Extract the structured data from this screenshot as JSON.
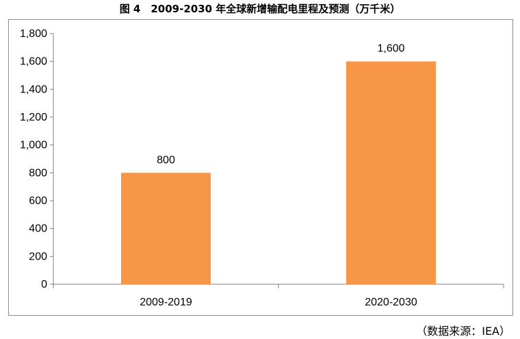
{
  "chart_title": "图 4　2009-2030 年全球新增输配电里程及预测（万千米）",
  "source": "（数据来源：IEA）",
  "colors": {
    "bar": "#F79646",
    "axis": "#7f7f7f",
    "frame": "#8c8c8c"
  },
  "chart_data": {
    "type": "bar",
    "title": "图 4　2009-2030 年全球新增输配电里程及预测（万千米）",
    "categories": [
      "2009-2019",
      "2020-2030"
    ],
    "values": [
      800,
      1600
    ],
    "value_labels": [
      "800",
      "1,600"
    ],
    "xlabel": "",
    "ylabel": "",
    "ylim": [
      0,
      1800
    ],
    "yticks": [
      0,
      200,
      400,
      600,
      800,
      1000,
      1200,
      1400,
      1600,
      1800
    ],
    "ytick_labels": [
      "0",
      "200",
      "400",
      "600",
      "800",
      "1,000",
      "1,200",
      "1,400",
      "1,600",
      "1,800"
    ],
    "grid": false,
    "legend": "none"
  }
}
